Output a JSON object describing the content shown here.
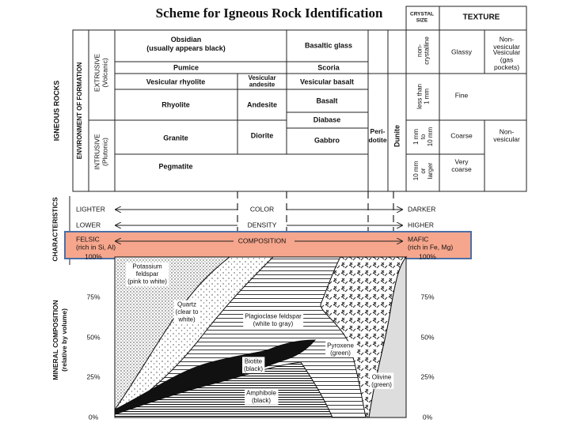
{
  "title": "Scheme for Igneous Rock Identification",
  "header": {
    "crystal_size": [
      "CRYSTAL",
      "SIZE"
    ],
    "texture": "TEXTURE"
  },
  "side": {
    "igneous_rocks": "IGNEOUS ROCKS",
    "environment": "ENVIRONMENT OF FORMATION",
    "extrusive": [
      "EXTRUSIVE",
      "(Volcanic)"
    ],
    "intrusive": [
      "INTRUSIVE",
      "(Plutonic)"
    ],
    "characteristics": "CHARACTERISTICS",
    "mineral_composition": [
      "MINERAL COMPOSITION",
      "(relative by volume)"
    ]
  },
  "rocks": {
    "obsidian": [
      "Obsidian",
      "(usually appears black)"
    ],
    "basaltic_glass": "Basaltic glass",
    "pumice": "Pumice",
    "scoria": "Scoria",
    "vesicular_rhyolite": "Vesicular rhyolite",
    "vesicular_andesite": [
      "Vesicular",
      "andesite"
    ],
    "vesicular_basalt": "Vesicular basalt",
    "rhyolite": "Rhyolite",
    "andesite": "Andesite",
    "basalt": "Basalt",
    "diabase": "Diabase",
    "granite": "Granite",
    "diorite": "Diorite",
    "gabbro": "Gabbro",
    "peridotite": [
      "Peri-",
      "dotite"
    ],
    "dunite": "Dunite",
    "pegmatite": "Pegmatite"
  },
  "crystal_size": {
    "non_crystalline": [
      "non-",
      "crystalline"
    ],
    "less_than_1mm": [
      "less than",
      "1 mm"
    ],
    "one_to_ten_mm": [
      "1 mm",
      "to",
      "10 mm"
    ],
    "ten_mm_or_larger": [
      "10 mm",
      "or",
      "larger"
    ]
  },
  "texture": {
    "glassy": "Glassy",
    "non_vesicular_top": [
      "Non-",
      "vesicular"
    ],
    "vesicular": [
      "Vesicular",
      "(gas",
      "pockets)"
    ],
    "fine": "Fine",
    "coarse": "Coarse",
    "non_vesicular_bottom": [
      "Non-",
      "vesicular"
    ],
    "very_coarse": [
      "Very",
      "coarse"
    ]
  },
  "characteristics": [
    {
      "left": "LIGHTER",
      "middle": "COLOR",
      "right": "DARKER"
    },
    {
      "left": "LOWER",
      "middle": "DENSITY",
      "right": "HIGHER"
    },
    {
      "left": [
        "FELSIC",
        "(rich in Si, Al)"
      ],
      "middle": "COMPOSITION",
      "right": [
        "MAFIC",
        "(rich in Fe, Mg)"
      ]
    }
  ],
  "percent_scale": [
    "100%",
    "75%",
    "50%",
    "25%",
    "0%"
  ],
  "minerals": {
    "potassium_feldspar": [
      "Potassium",
      "feldspar",
      "(pink to white)"
    ],
    "quartz": [
      "Quartz",
      "(clear to",
      "white)"
    ],
    "plagioclase": [
      "Plagioclase feldspar",
      "(white to gray)"
    ],
    "biotite": [
      "Biotite",
      "(black)"
    ],
    "amphibole": [
      "Amphibole",
      "(black)"
    ],
    "pyroxene": [
      "Pyroxene",
      "(green)"
    ],
    "olivine": [
      "Olivine",
      "(green)"
    ]
  }
}
